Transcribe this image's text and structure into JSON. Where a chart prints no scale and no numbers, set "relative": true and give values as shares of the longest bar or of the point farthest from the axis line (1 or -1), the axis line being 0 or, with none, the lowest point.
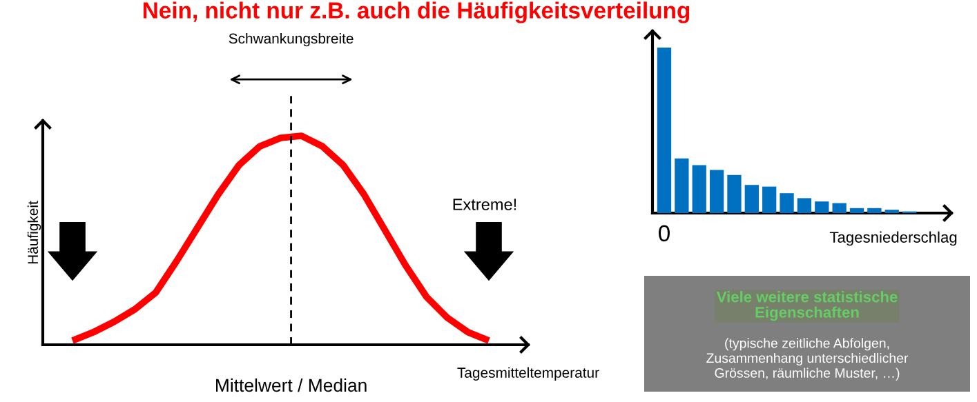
{
  "chart_data": [
    {
      "type": "line",
      "title": "Nein, nicht nur z.B. auch die Häufigkeitsverteilung",
      "xlabel": "Tagesmitteltemperatur",
      "ylabel": "Häufigkeit",
      "relative": true,
      "categories": [
        null,
        null,
        null,
        null,
        null,
        null,
        null,
        null,
        null,
        null,
        null,
        null,
        null,
        null,
        null,
        null,
        null,
        null,
        null,
        null,
        null
      ],
      "series": [
        {
          "color": "#ff0000",
          "values": [
            0.02,
            0.06,
            0.11,
            0.17,
            0.25,
            0.4,
            0.56,
            0.72,
            0.86,
            0.95,
            0.99,
            1.0,
            0.95,
            0.86,
            0.72,
            0.55,
            0.38,
            0.23,
            0.13,
            0.06,
            0.02
          ]
        }
      ],
      "annotations": [
        "Schwankungsbreite",
        "Extreme!",
        "Mittelwert / Median"
      ],
      "marker": "none",
      "line_style": "solid",
      "grid": false,
      "legend": false
    },
    {
      "type": "bar",
      "xlabel": "Tagesniederschlag",
      "relative": true,
      "categories": [
        "0",
        null,
        null,
        null,
        null,
        null,
        null,
        null,
        null,
        null,
        null,
        null,
        null,
        null,
        null
      ],
      "values": [
        1,
        0.33,
        0.29,
        0.26,
        0.23,
        0.17,
        0.16,
        0.12,
        0.09,
        0.07,
        0.06,
        0.03,
        0.03,
        0.02,
        0.01
      ],
      "color": "#0070c0",
      "grid": false,
      "legend": false
    },
    {
      "type": "other",
      "annotations": [
        "Viele weitere statistische\nEigenschaften",
        "(typische zeitliche Abfolgen,\nZusammenhang unterschiedlicher\nGrössen, räumliche Muster, …)"
      ]
    }
  ]
}
